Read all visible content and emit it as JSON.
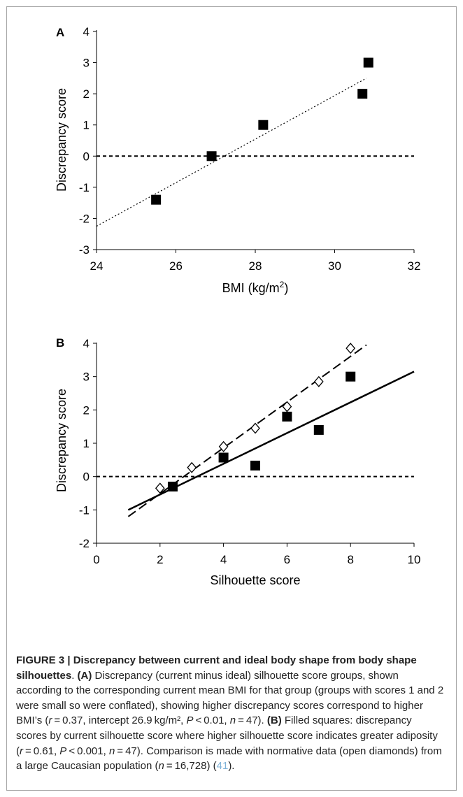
{
  "chart_data": [
    {
      "type": "scatter",
      "panel_label": "A",
      "xlabel": "BMI (kg/m",
      "xlabel_sup": "2",
      "xlabel_end": ")",
      "ylabel": "Discrepancy score",
      "xlim": [
        24,
        32
      ],
      "ylim": [
        -3,
        4
      ],
      "xticks": [
        "24",
        "26",
        "28",
        "30",
        "32"
      ],
      "yticks": [
        "4",
        "3",
        "2",
        "1",
        "0",
        "-1",
        "-2",
        "-3"
      ],
      "points": [
        {
          "x": 25.5,
          "y": -1.4
        },
        {
          "x": 26.9,
          "y": 0
        },
        {
          "x": 28.2,
          "y": 1
        },
        {
          "x": 30.7,
          "y": 2
        },
        {
          "x": 30.85,
          "y": 3
        }
      ],
      "reference_line_y": 0,
      "trend_line": {
        "x1": 24,
        "y1": -2.25,
        "x2": 30.8,
        "y2": 2.5,
        "style": "dotted"
      }
    },
    {
      "type": "scatter",
      "panel_label": "B",
      "xlabel": "Silhouette score",
      "ylabel": "Discrepancy score",
      "xlim": [
        0,
        10
      ],
      "ylim": [
        -2,
        4
      ],
      "xticks": [
        "0",
        "2",
        "4",
        "6",
        "8",
        "10"
      ],
      "yticks": [
        "4",
        "3",
        "2",
        "1",
        "0",
        "-1",
        "-2"
      ],
      "series": [
        {
          "marker": "filled-square",
          "points": [
            {
              "x": 2.4,
              "y": -0.3
            },
            {
              "x": 4,
              "y": 0.57
            },
            {
              "x": 5,
              "y": 0.33
            },
            {
              "x": 6,
              "y": 1.8
            },
            {
              "x": 7,
              "y": 1.4
            },
            {
              "x": 8,
              "y": 3
            }
          ],
          "trend_line": {
            "x1": 1,
            "y1": -1,
            "x2": 10,
            "y2": 3.15,
            "style": "solid"
          }
        },
        {
          "marker": "open-diamond",
          "points": [
            {
              "x": 2,
              "y": -0.35
            },
            {
              "x": 3,
              "y": 0.27
            },
            {
              "x": 4,
              "y": 0.9
            },
            {
              "x": 5,
              "y": 1.45
            },
            {
              "x": 6,
              "y": 2.1
            },
            {
              "x": 7,
              "y": 2.85
            },
            {
              "x": 8,
              "y": 3.85
            }
          ],
          "trend_line": {
            "x1": 1,
            "y1": -1.2,
            "x2": 8.5,
            "y2": 3.95,
            "style": "dashed"
          }
        }
      ],
      "reference_line_y": 0
    }
  ],
  "caption": {
    "s1": "FIGURE 3 | Discrepancy between current and ideal body shape from body shape silhouettes",
    "s2": ". ",
    "s3": "(A)",
    "s4": " Discrepancy (current minus ideal) silhouette score groups, shown according to the corresponding current mean BMI for that group (groups with scores 1 and 2 were small so were conflated), showing higher discrepancy scores correspond to higher BMI’s (",
    "s5": "r",
    "s6": " = 0.37, intercept 26.9 kg/m², ",
    "s7": "P",
    "s8": " < 0.01, ",
    "s9": "n",
    "s10": " = 47). ",
    "s11": "(B)",
    "s12": " Filled squares: discrepancy scores by current silhouette score where higher silhouette score indicates greater adiposity (",
    "s13": "r",
    "s14": " = 0.61, ",
    "s15": "P",
    "s16": " < 0.001, ",
    "s17": "n",
    "s18": " = 47). Comparison is made with normative data (open diamonds) from a large Caucasian population (",
    "s19": "n",
    "s20": " = 16,728) (",
    "s21": "41",
    "s22": ")."
  }
}
